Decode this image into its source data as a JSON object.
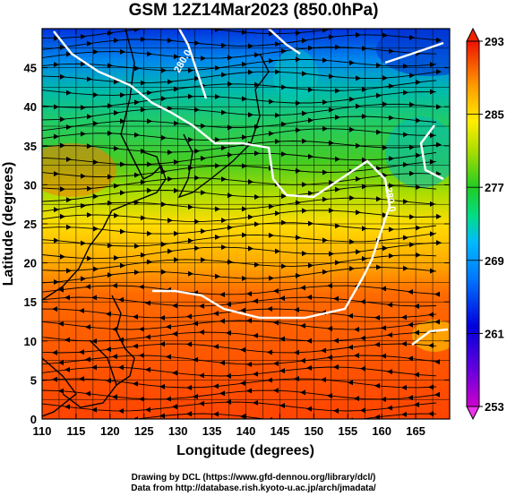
{
  "title": "GSM 12Z14Mar2023 (850.0hPa)",
  "map": {
    "xlabel": "Longitude (degrees)",
    "ylabel": "Latitude  (degrees)",
    "xlim": [
      110,
      170
    ],
    "ylim": [
      0,
      50
    ],
    "xticks": [
      "110",
      "115",
      "120",
      "125",
      "130",
      "135",
      "140",
      "145",
      "150",
      "155",
      "160",
      "165"
    ],
    "yticks": [
      "0",
      "5",
      "10",
      "15",
      "20",
      "25",
      "30",
      "35",
      "40",
      "45"
    ],
    "contour_label": "280.0",
    "contour_label_2": "280.0"
  },
  "colorbar": {
    "ticks": [
      "293",
      "285",
      "277",
      "269",
      "261",
      "253"
    ],
    "range": [
      253,
      293
    ],
    "colors": [
      "#cc00cc",
      "#0000dd",
      "#0066ff",
      "#00bbff",
      "#00dd88",
      "#22cc22",
      "#aadd00",
      "#ffee00",
      "#ff9900",
      "#ff3300",
      "#ee1100"
    ]
  },
  "credits": {
    "line1": "Drawing by DCL (https://www.gfd-dennou.org/library/dcl/)",
    "line2": "Data from http://database.rish.kyoto-u.ac.jp/arch/jmadata/"
  }
}
